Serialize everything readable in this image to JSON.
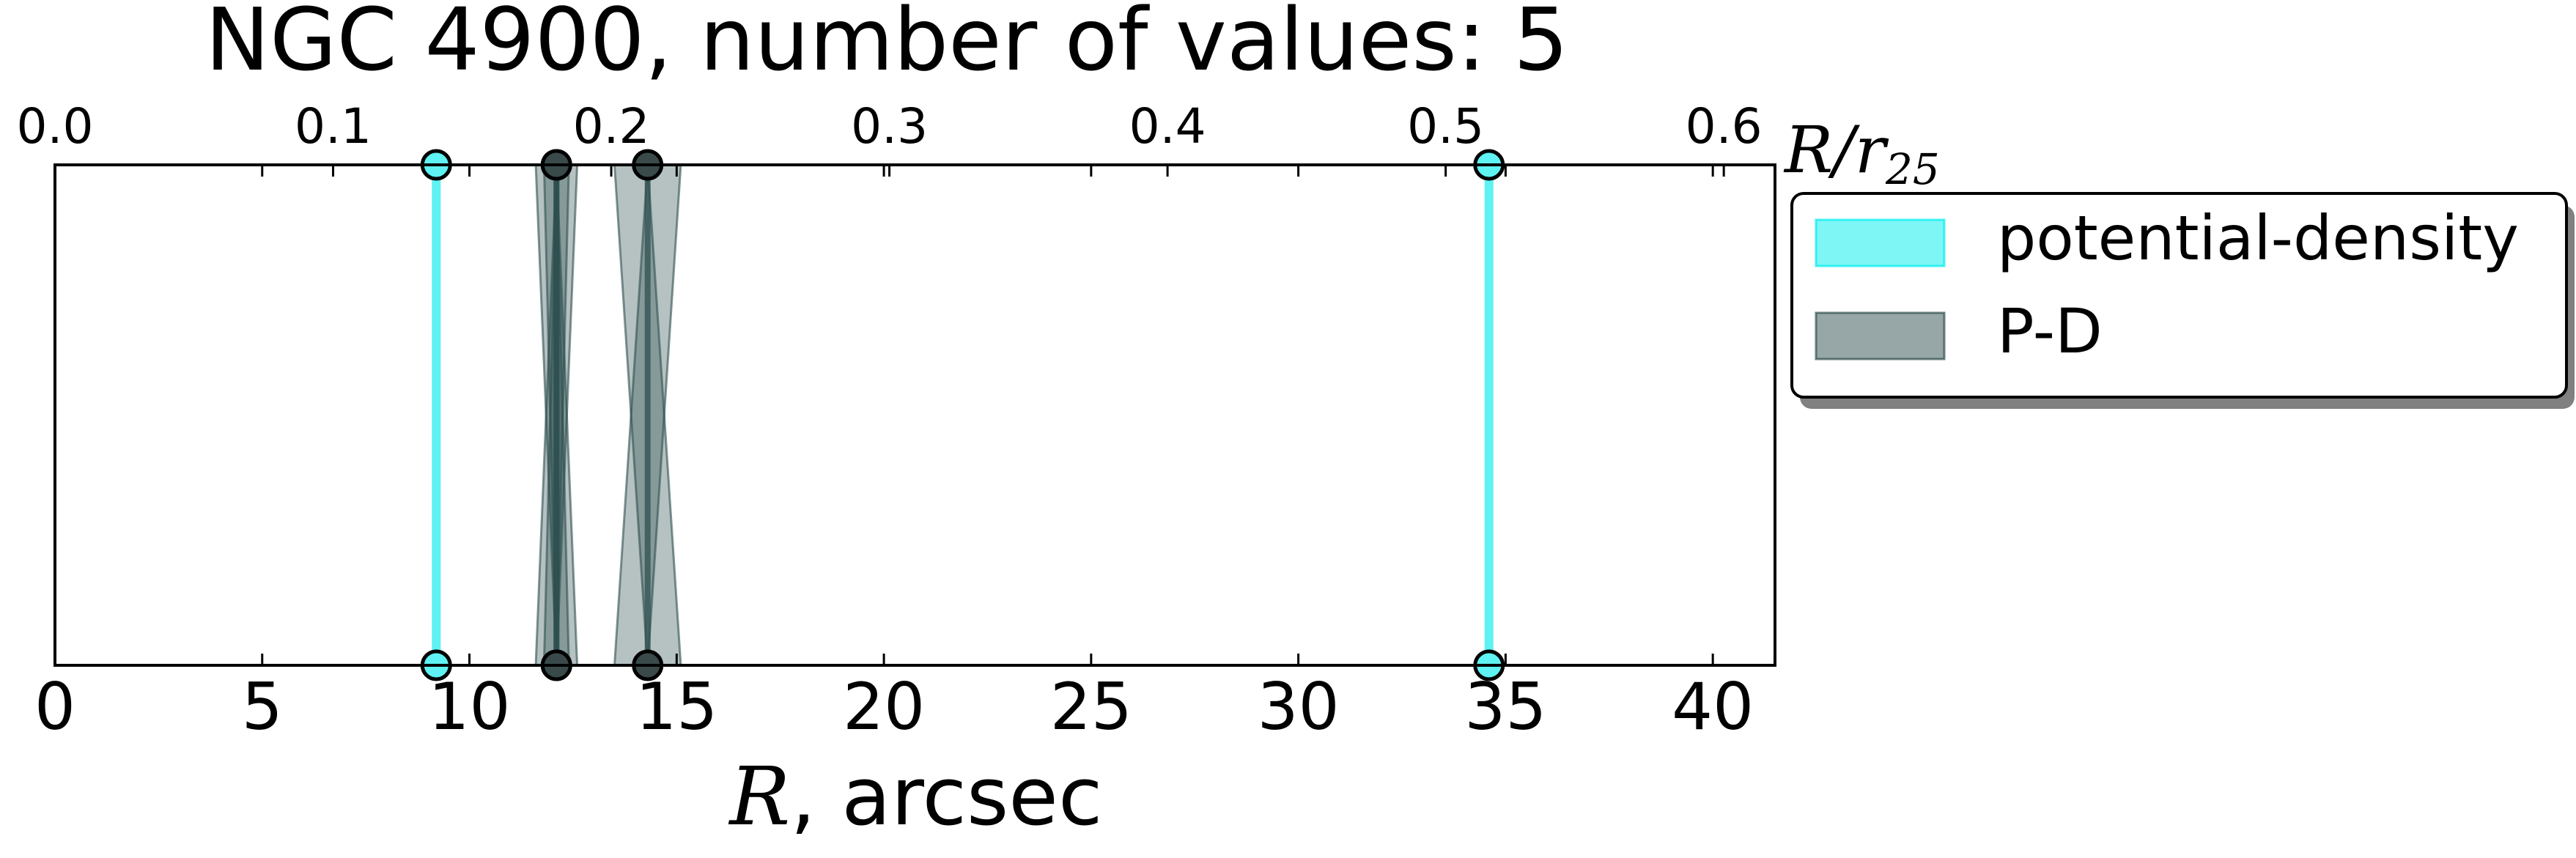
{
  "chart_data": {
    "type": "interval-markers",
    "title": "NGC 4900, number of values: 5",
    "xlabel_bottom": {
      "symbol": "R",
      "rest": ", arcsec"
    },
    "xlabel_top": {
      "symbol": "R/r",
      "subscript": "25"
    },
    "x_bottom": {
      "range": [
        0,
        41.5
      ],
      "ticks": [
        0,
        5,
        10,
        15,
        20,
        25,
        30,
        35,
        40
      ],
      "tick_labels": [
        "0",
        "5",
        "10",
        "15",
        "20",
        "25",
        "30",
        "35",
        "40"
      ]
    },
    "x_top": {
      "range": [
        0,
        0.6184
      ],
      "ticks": [
        0.0,
        0.1,
        0.2,
        0.3,
        0.4,
        0.5,
        0.6
      ],
      "tick_labels": [
        "0.0",
        "0.1",
        "0.2",
        "0.3",
        "0.4",
        "0.5",
        "0.6"
      ]
    },
    "grid": false,
    "legend": {
      "placement": "outside-right-top",
      "entries": [
        {
          "name": "potential-density",
          "color": "#00eeee"
        },
        {
          "name": "P-D",
          "color": "#2f4f4f"
        }
      ]
    },
    "series": [
      {
        "name": "potential-density",
        "color": "#00eeee",
        "markers": [
          {
            "x": 9.2,
            "halfwidth": 0.0
          },
          {
            "x": 34.6,
            "halfwidth": 0.0
          }
        ]
      },
      {
        "name": "P-D",
        "color": "#2f4f4f",
        "markers": [
          {
            "x": 12.1,
            "halfwidth": 0.5
          },
          {
            "x": 14.3,
            "halfwidth": 0.8
          },
          {
            "x": 12.1,
            "halfwidth": 0.3
          }
        ]
      }
    ]
  }
}
